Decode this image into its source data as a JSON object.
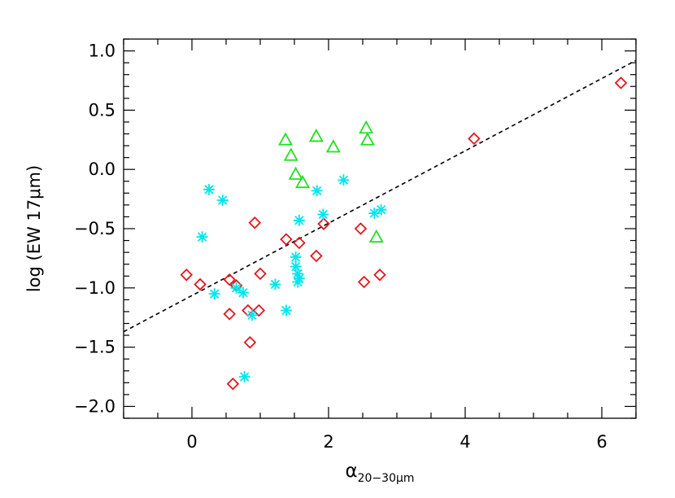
{
  "chart_data": {
    "type": "scatter",
    "xlabel": {
      "symbol": "α",
      "subscript": "20−30μm"
    },
    "ylabel": "log (EW 17μm)",
    "xlim": [
      -1.0,
      6.5
    ],
    "ylim": [
      -2.1,
      1.1
    ],
    "x_ticks": [
      0,
      2,
      4,
      6
    ],
    "x_tick_labels": [
      "0",
      "2",
      "4",
      "6"
    ],
    "y_ticks": [
      -2.0,
      -1.5,
      -1.0,
      -0.5,
      0.0,
      0.5,
      1.0
    ],
    "y_tick_labels": [
      "−2.0",
      "−1.5",
      "−1.0",
      "−0.5",
      "0.0",
      "0.5",
      "1.0"
    ],
    "grid": false,
    "series": [
      {
        "marker": "diamond",
        "color": "#e0191d",
        "points": [
          [
            -0.08,
            -0.89
          ],
          [
            0.12,
            -0.97
          ],
          [
            0.55,
            -0.93
          ],
          [
            0.65,
            -0.98
          ],
          [
            0.55,
            -1.22
          ],
          [
            0.82,
            -1.19
          ],
          [
            0.98,
            -1.19
          ],
          [
            0.85,
            -1.46
          ],
          [
            0.6,
            -1.81
          ],
          [
            0.92,
            -0.45
          ],
          [
            1.0,
            -0.88
          ],
          [
            1.38,
            -0.59
          ],
          [
            1.57,
            -0.62
          ],
          [
            1.82,
            -0.73
          ],
          [
            1.93,
            -0.46
          ],
          [
            2.47,
            -0.5
          ],
          [
            2.52,
            -0.95
          ],
          [
            2.75,
            -0.89
          ],
          [
            4.13,
            0.26
          ],
          [
            6.28,
            0.73
          ]
        ]
      },
      {
        "marker": "asterisk",
        "color": "#00e6ee",
        "points": [
          [
            0.25,
            -0.17
          ],
          [
            0.45,
            -0.26
          ],
          [
            0.15,
            -0.57
          ],
          [
            0.33,
            -1.05
          ],
          [
            0.65,
            -1.0
          ],
          [
            0.75,
            -1.04
          ],
          [
            0.88,
            -1.23
          ],
          [
            0.77,
            -1.75
          ],
          [
            1.22,
            -0.97
          ],
          [
            1.38,
            -1.19
          ],
          [
            1.52,
            -0.74
          ],
          [
            1.52,
            -0.82
          ],
          [
            1.55,
            -0.88
          ],
          [
            1.57,
            -0.92
          ],
          [
            1.55,
            -0.95
          ],
          [
            1.57,
            -0.43
          ],
          [
            1.83,
            -0.18
          ],
          [
            1.92,
            -0.38
          ],
          [
            2.22,
            -0.09
          ],
          [
            2.67,
            -0.37
          ],
          [
            2.77,
            -0.34
          ]
        ]
      },
      {
        "marker": "triangle",
        "color": "#22e022",
        "points": [
          [
            1.37,
            0.25
          ],
          [
            1.45,
            0.12
          ],
          [
            1.52,
            -0.04
          ],
          [
            1.62,
            -0.11
          ],
          [
            1.82,
            0.28
          ],
          [
            2.07,
            0.19
          ],
          [
            2.55,
            0.35
          ],
          [
            2.57,
            0.25
          ],
          [
            2.7,
            -0.57
          ]
        ]
      }
    ],
    "fit_line": {
      "style": "dashed",
      "color": "#000000",
      "x": [
        -1.0,
        6.5
      ],
      "y": [
        -1.37,
        0.92
      ]
    }
  }
}
